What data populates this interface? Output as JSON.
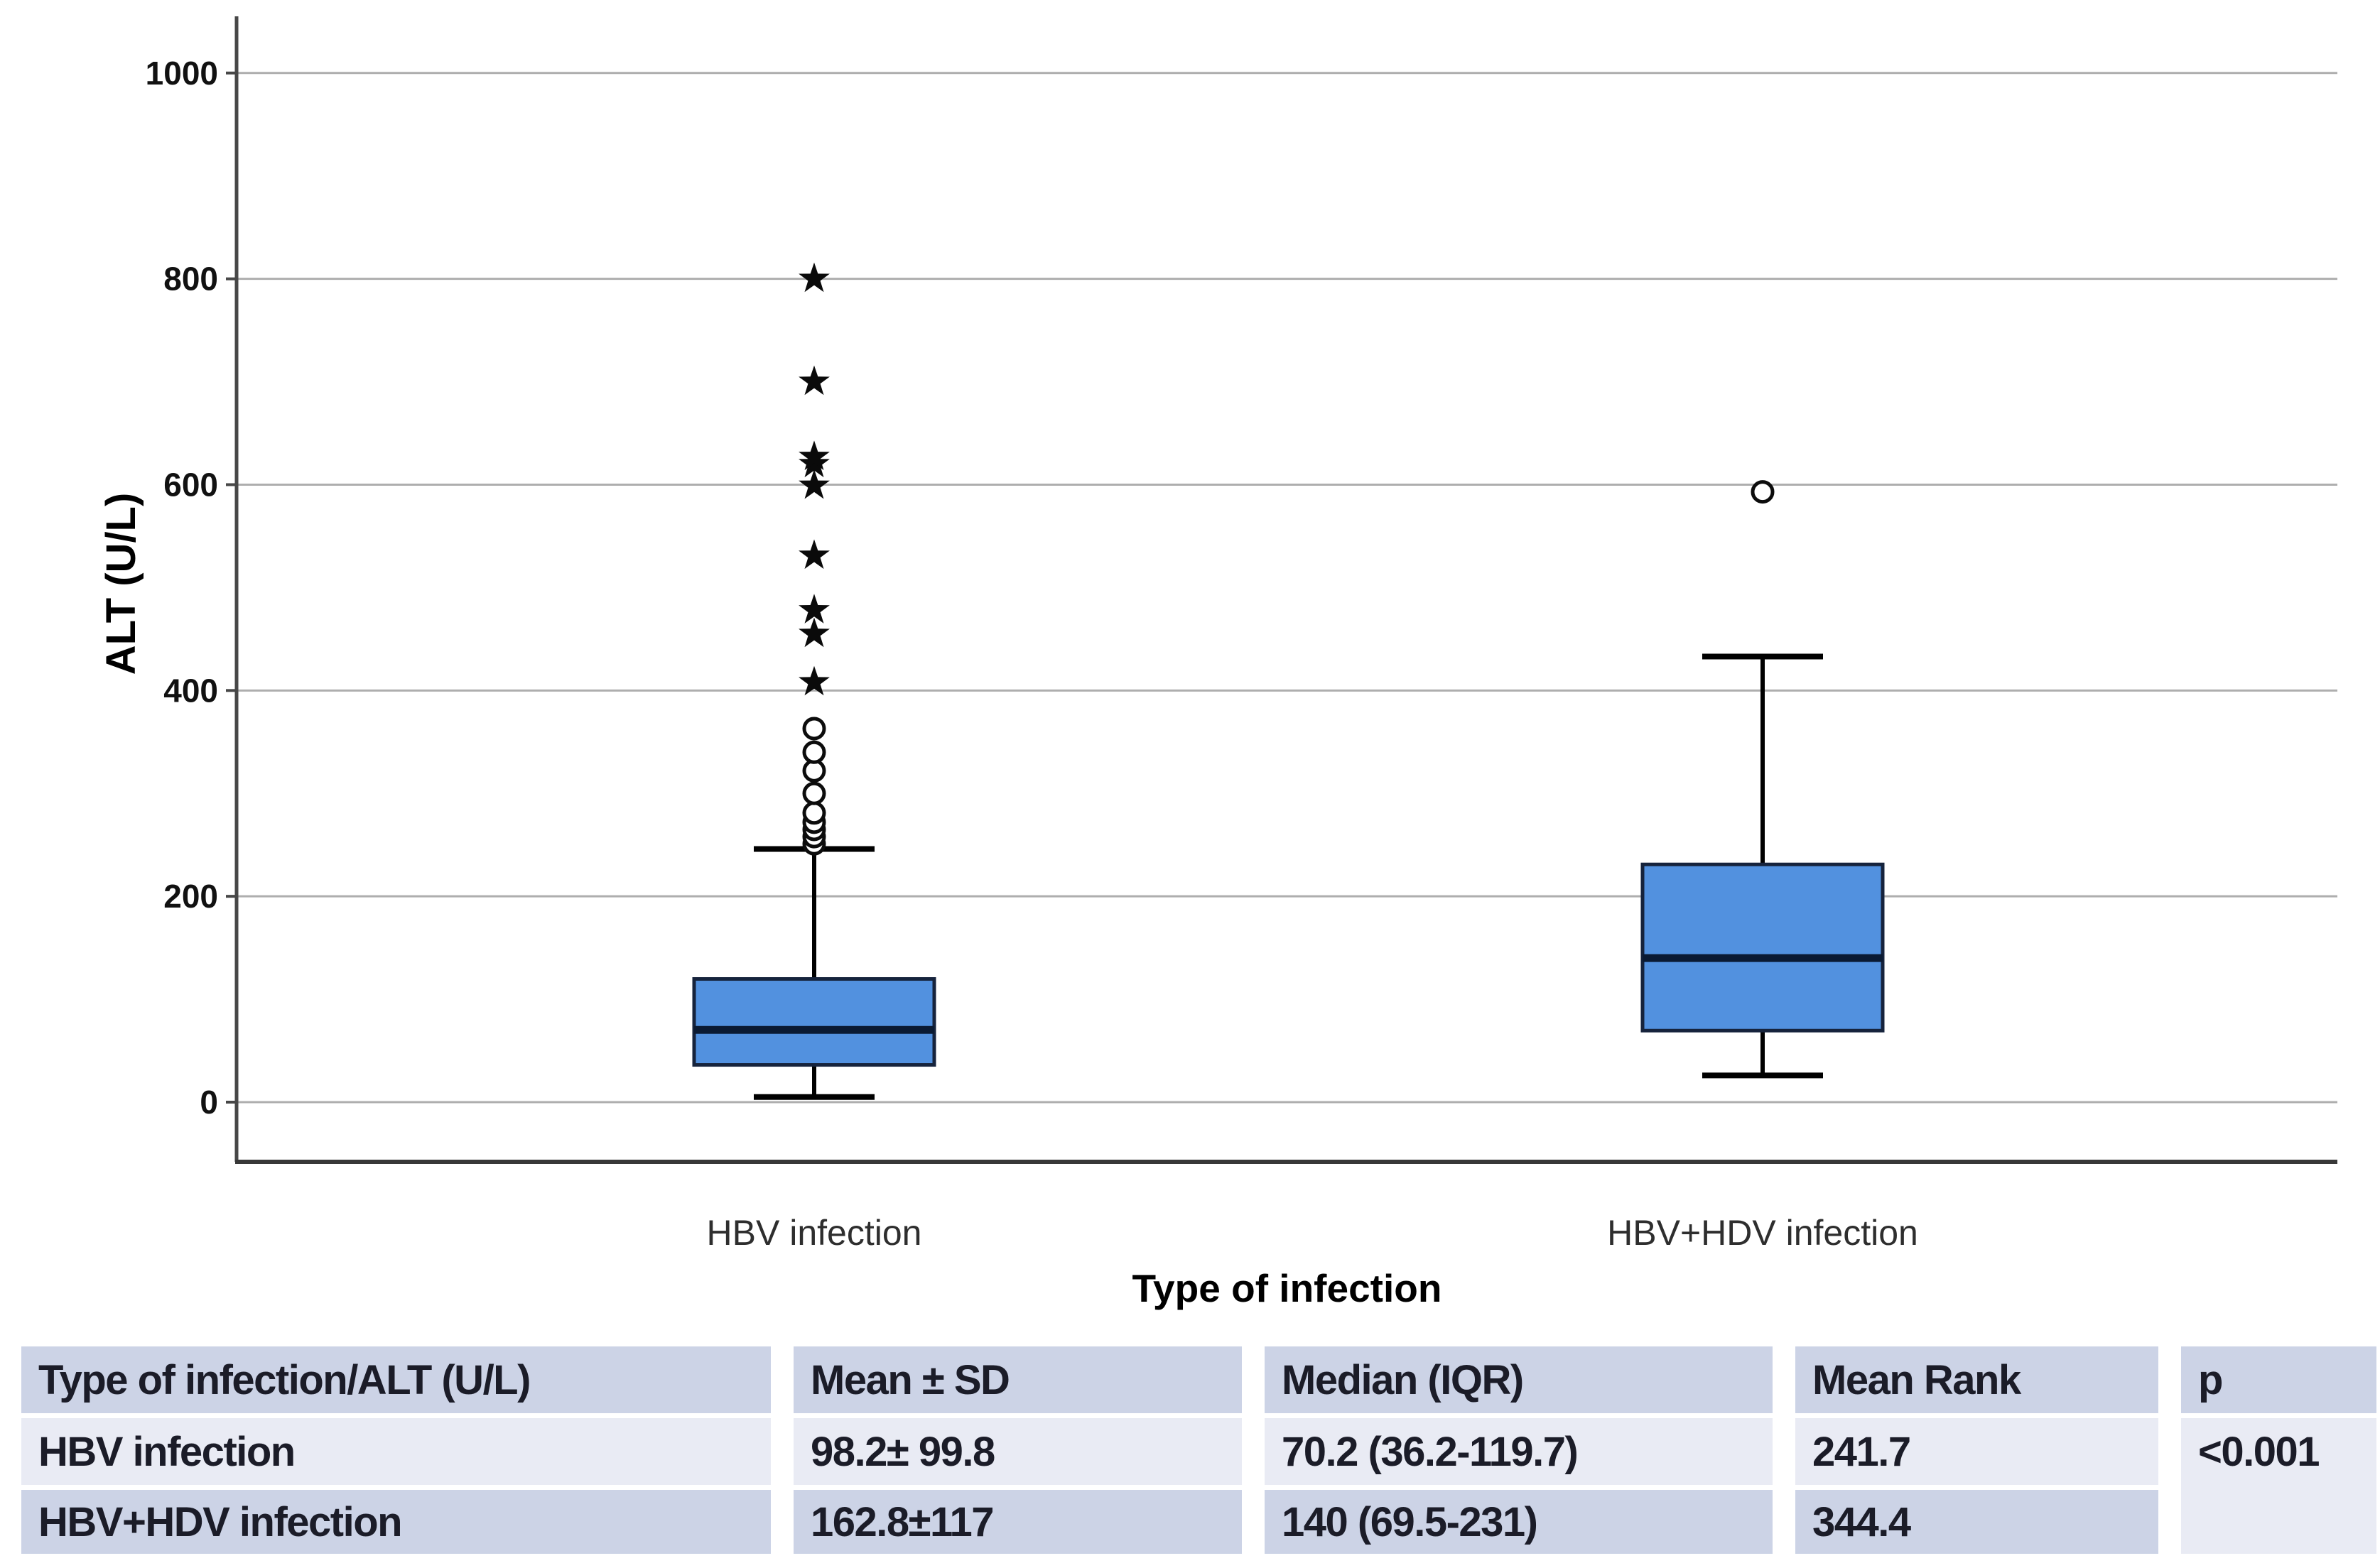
{
  "chart_data": {
    "type": "boxplot",
    "title": "",
    "ylabel": "ALT (U/L)",
    "xlabel": "Type of infection",
    "ylim": [
      -58,
      1055
    ],
    "yticks": [
      0,
      200,
      400,
      600,
      800,
      1000
    ],
    "grid": true,
    "categories": [
      "HBV infection",
      "HBV+HDV infection"
    ],
    "series": [
      {
        "name": "HBV infection",
        "whisker_low": 5,
        "q1": 36.2,
        "median": 70.2,
        "q3": 119.7,
        "whisker_high": 246,
        "outliers_circle": [
          251,
          258,
          265,
          272,
          281,
          300,
          322,
          340,
          363
        ],
        "outliers_star": [
          408,
          455,
          478,
          531,
          599,
          620,
          627,
          700,
          800
        ]
      },
      {
        "name": "HBV+HDV infection",
        "whisker_low": 26,
        "q1": 69.5,
        "median": 140,
        "q3": 231,
        "whisker_high": 433,
        "outliers_circle": [
          593
        ],
        "outliers_star": []
      }
    ],
    "colors": {
      "box_fill": "#5291df",
      "box_stroke": "#16233c",
      "median": "#0a1a33",
      "whisker": "#000000",
      "gridline": "#aeaeae",
      "axis": "#474747",
      "tick_text": "#111111",
      "label_text": "#2e2e2e"
    }
  },
  "table": {
    "headers": [
      "Type of infection/ALT (U/L)",
      "Mean ± SD",
      "Median (IQR)",
      "Mean Rank",
      "p"
    ],
    "rows": [
      {
        "label": "HBV infection",
        "mean_sd": "98.2± 99.8",
        "median_iqr": "70.2 (36.2-119.7)",
        "mean_rank": "241.7",
        "p": "<0.001"
      },
      {
        "label": "HBV+HDV infection",
        "mean_sd": "162.8±117",
        "median_iqr": "140 (69.5-231)",
        "mean_rank": "344.4",
        "p": ""
      }
    ]
  }
}
